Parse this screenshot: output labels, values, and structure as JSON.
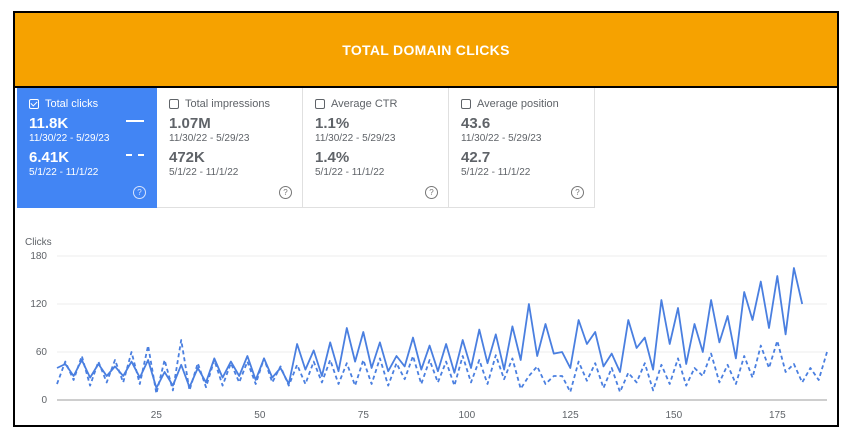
{
  "banner": {
    "title": "TOTAL DOMAIN CLICKS",
    "color": "#F6A200"
  },
  "cards": [
    {
      "label": "Total clicks",
      "active": true,
      "current_value": "11.8K",
      "current_range": "11/30/22 - 5/29/23",
      "previous_value": "6.41K",
      "previous_range": "5/1/22 - 11/1/22"
    },
    {
      "label": "Total impressions",
      "active": false,
      "current_value": "1.07M",
      "current_range": "11/30/22 - 5/29/23",
      "previous_value": "472K",
      "previous_range": "5/1/22 - 11/1/22"
    },
    {
      "label": "Average CTR",
      "active": false,
      "current_value": "1.1%",
      "current_range": "11/30/22 - 5/29/23",
      "previous_value": "1.4%",
      "previous_range": "5/1/22 - 11/1/22"
    },
    {
      "label": "Average position",
      "active": false,
      "current_value": "43.6",
      "current_range": "11/30/22 - 5/29/23",
      "previous_value": "42.7",
      "previous_range": "5/1/22 - 11/1/22"
    }
  ],
  "icons": {
    "checkbox": "checkbox-icon",
    "help": "help-circle-icon",
    "help_glyph": "?"
  },
  "chart_data": {
    "type": "line",
    "ylabel": "Clicks",
    "ylim": [
      0,
      180
    ],
    "xlim": [
      1,
      187
    ],
    "yticks": [
      "0",
      "60",
      "120",
      "180"
    ],
    "xticks": [
      "25",
      "50",
      "75",
      "100",
      "125",
      "150",
      "175"
    ],
    "grid": true,
    "series": [
      {
        "style": "solid",
        "color": "#4A7FE0",
        "x": [
          1,
          3,
          5,
          7,
          9,
          11,
          13,
          15,
          17,
          19,
          21,
          23,
          25,
          27,
          29,
          31,
          33,
          35,
          37,
          39,
          41,
          43,
          45,
          47,
          49,
          51,
          53,
          55,
          57,
          59,
          61,
          63,
          65,
          67,
          69,
          71,
          73,
          75,
          77,
          79,
          81,
          83,
          85,
          87,
          89,
          91,
          93,
          95,
          97,
          99,
          101,
          103,
          105,
          107,
          109,
          111,
          113,
          115,
          117,
          119,
          121,
          123,
          125,
          127,
          129,
          131,
          133,
          135,
          137,
          139,
          141,
          143,
          145,
          147,
          149,
          151,
          153,
          155,
          157,
          159,
          161,
          163,
          165,
          167,
          169,
          171,
          173,
          175,
          177,
          179,
          181
        ],
        "values": [
          40,
          45,
          30,
          50,
          28,
          45,
          30,
          42,
          30,
          48,
          28,
          50,
          15,
          35,
          18,
          44,
          16,
          40,
          22,
          52,
          28,
          48,
          30,
          55,
          25,
          52,
          28,
          40,
          20,
          70,
          38,
          62,
          30,
          72,
          36,
          90,
          48,
          85,
          40,
          72,
          36,
          55,
          42,
          78,
          38,
          68,
          36,
          70,
          34,
          75,
          40,
          88,
          46,
          82,
          38,
          92,
          50,
          120,
          55,
          95,
          58,
          60,
          40,
          100,
          70,
          85,
          42,
          58,
          35,
          100,
          65,
          78,
          38,
          125,
          70,
          115,
          45,
          95,
          60,
          125,
          72,
          105,
          52,
          135,
          100,
          148,
          90,
          155,
          82,
          165,
          120
        ]
      },
      {
        "style": "dashed",
        "color": "#4A7FE0",
        "x": [
          1,
          3,
          5,
          7,
          9,
          11,
          13,
          15,
          17,
          19,
          21,
          23,
          25,
          27,
          29,
          31,
          33,
          35,
          37,
          39,
          41,
          43,
          45,
          47,
          49,
          51,
          53,
          55,
          57,
          59,
          61,
          63,
          65,
          67,
          69,
          71,
          73,
          75,
          77,
          79,
          81,
          83,
          85,
          87,
          89,
          91,
          93,
          95,
          97,
          99,
          101,
          103,
          105,
          107,
          109,
          111,
          113,
          115,
          117,
          119,
          121,
          123,
          125,
          127,
          129,
          131,
          133,
          135,
          137,
          139,
          141,
          143,
          145,
          147,
          149,
          151,
          153,
          155,
          157,
          159,
          161,
          163,
          165,
          167,
          169,
          171,
          173,
          175,
          177,
          179,
          181,
          183,
          185,
          187
        ],
        "values": [
          20,
          48,
          25,
          55,
          18,
          48,
          22,
          50,
          22,
          60,
          20,
          68,
          8,
          50,
          12,
          75,
          12,
          46,
          16,
          50,
          18,
          46,
          22,
          48,
          20,
          52,
          22,
          42,
          18,
          44,
          20,
          48,
          22,
          50,
          20,
          46,
          18,
          50,
          20,
          52,
          18,
          46,
          26,
          55,
          20,
          50,
          22,
          48,
          18,
          55,
          22,
          50,
          20,
          56,
          26,
          52,
          14,
          30,
          42,
          20,
          30,
          30,
          10,
          48,
          24,
          46,
          15,
          40,
          10,
          34,
          22,
          46,
          12,
          44,
          20,
          52,
          18,
          40,
          30,
          58,
          22,
          44,
          20,
          55,
          28,
          68,
          40,
          74,
          35,
          45,
          22,
          40,
          25,
          60
        ]
      }
    ]
  }
}
